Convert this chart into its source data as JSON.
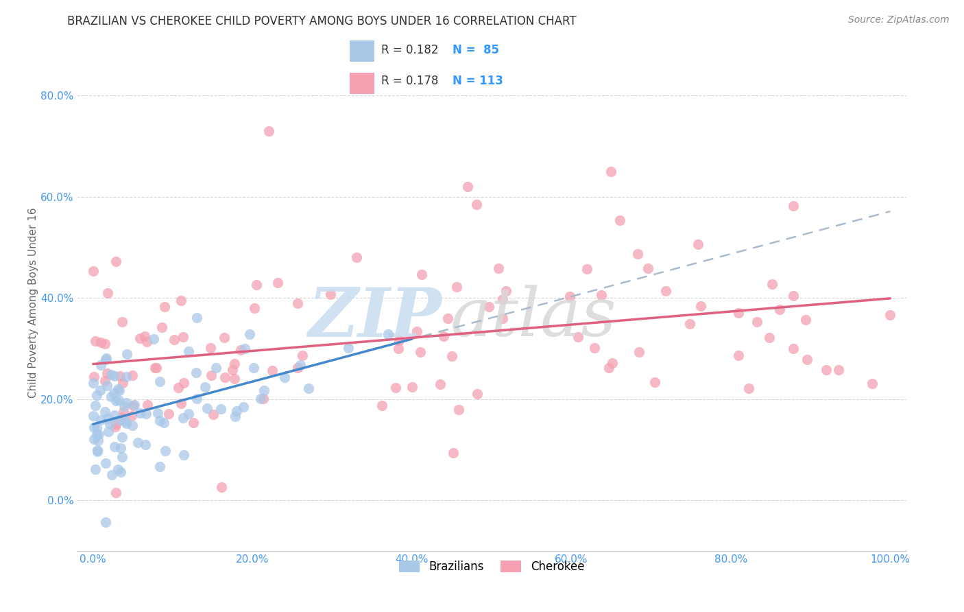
{
  "title": "BRAZILIAN VS CHEROKEE CHILD POVERTY AMONG BOYS UNDER 16 CORRELATION CHART",
  "source": "Source: ZipAtlas.com",
  "ylabel": "Child Poverty Among Boys Under 16",
  "xlim": [
    -0.02,
    1.02
  ],
  "ylim": [
    -0.1,
    0.88
  ],
  "x_ticks": [
    0.0,
    0.2,
    0.4,
    0.6,
    0.8,
    1.0
  ],
  "x_tick_labels": [
    "0.0%",
    "20.0%",
    "40.0%",
    "60.0%",
    "80.0%",
    "100.0%"
  ],
  "y_ticks": [
    0.0,
    0.2,
    0.4,
    0.6,
    0.8
  ],
  "y_tick_labels": [
    "0.0%",
    "20.0%",
    "40.0%",
    "60.0%",
    "80.0%"
  ],
  "color_blue": "#a8c8e8",
  "color_pink": "#f4a0b0",
  "color_blue_line": "#4488cc",
  "color_pink_line": "#e06080",
  "color_dashed": "#aabbcc",
  "watermark_zip_color": "#c8ddf0",
  "watermark_atlas_color": "#d8d8d8",
  "seed": 12345,
  "title_fontsize": 12,
  "source_fontsize": 10
}
